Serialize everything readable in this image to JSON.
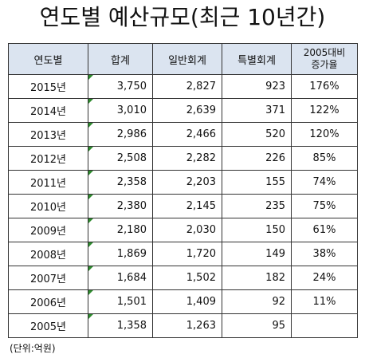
{
  "title": "연도별 예산규모(최근 10년간)",
  "columns": {
    "year": "연도별",
    "total": "합계",
    "general": "일반회계",
    "special": "특별회계",
    "ratio_line1": "2005대비",
    "ratio_line2": "증가율"
  },
  "rows": [
    {
      "year": "2015년",
      "total": "3,750",
      "general": "2,827",
      "special": "923",
      "ratio": "176%"
    },
    {
      "year": "2014년",
      "total": "3,010",
      "general": "2,639",
      "special": "371",
      "ratio": "122%"
    },
    {
      "year": "2013년",
      "total": "2,986",
      "general": "2,466",
      "special": "520",
      "ratio": "120%"
    },
    {
      "year": "2012년",
      "total": "2,508",
      "general": "2,282",
      "special": "226",
      "ratio": "85%"
    },
    {
      "year": "2011년",
      "total": "2,358",
      "general": "2,203",
      "special": "155",
      "ratio": "74%"
    },
    {
      "year": "2010년",
      "total": "2,380",
      "general": "2,145",
      "special": "235",
      "ratio": "75%"
    },
    {
      "year": "2009년",
      "total": "2,180",
      "general": "2,030",
      "special": "150",
      "ratio": "61%"
    },
    {
      "year": "2008년",
      "total": "1,869",
      "general": "1,720",
      "special": "149",
      "ratio": "38%"
    },
    {
      "year": "2007년",
      "total": "1,684",
      "general": "1,502",
      "special": "182",
      "ratio": "24%"
    },
    {
      "year": "2006년",
      "total": "1,501",
      "general": "1,409",
      "special": "92",
      "ratio": "11%"
    },
    {
      "year": "2005년",
      "total": "1,358",
      "general": "1,263",
      "special": "95",
      "ratio": ""
    }
  ],
  "unit_note": "(단위:억원)",
  "colors": {
    "header_background": "#dbe4f0",
    "border": "#333333",
    "cell_marker": "#2e8b2e"
  }
}
